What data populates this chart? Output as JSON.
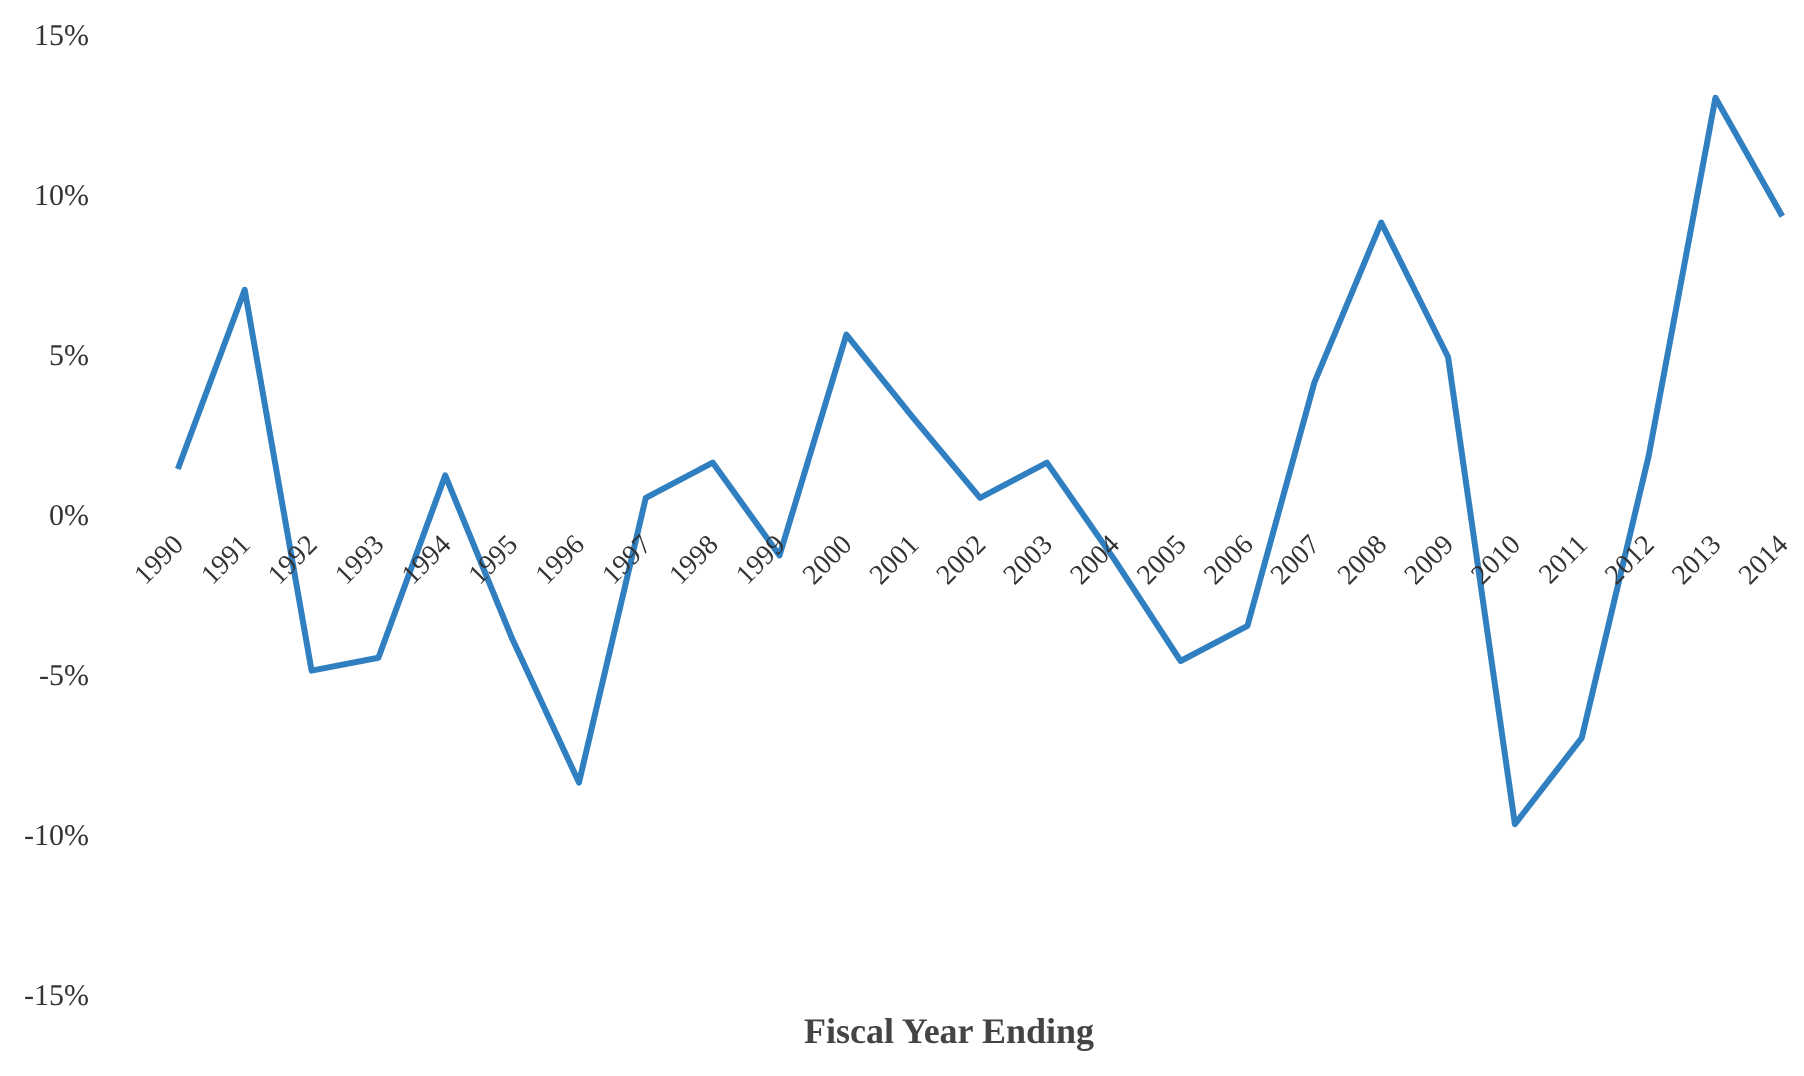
{
  "chart_data": {
    "type": "line",
    "xlabel": "Fiscal Year Ending",
    "categories": [
      "1990",
      "1991",
      "1992",
      "1993",
      "1994",
      "1995",
      "1996",
      "1997",
      "1998",
      "1999",
      "2000",
      "2001",
      "2002",
      "2003",
      "2004",
      "2005",
      "2006",
      "2007",
      "2008",
      "2009",
      "2010",
      "2011",
      "2012",
      "2013",
      "2014"
    ],
    "series": [
      {
        "color": "#2f7fc1",
        "values": [
          1.5,
          7.1,
          -4.8,
          -4.4,
          1.3,
          -3.8,
          -8.3,
          0.6,
          1.7,
          -1.2,
          5.7,
          3.1,
          0.6,
          1.7,
          -1.3,
          -4.5,
          -3.4,
          4.2,
          9.2,
          5.0,
          -9.6,
          -6.9,
          1.9,
          13.1,
          9.4
        ]
      }
    ],
    "ylim": [
      -15,
      15
    ],
    "yticks": [
      {
        "value": 15,
        "label": "15%"
      },
      {
        "value": 10,
        "label": "10%"
      },
      {
        "value": 5,
        "label": "5%"
      },
      {
        "value": 0,
        "label": "0%"
      },
      {
        "value": -5,
        "label": "-5%"
      },
      {
        "value": -10,
        "label": "-10%"
      },
      {
        "value": -15,
        "label": "-15%"
      }
    ],
    "grid": false,
    "marker": "none",
    "line_style": "solid"
  }
}
